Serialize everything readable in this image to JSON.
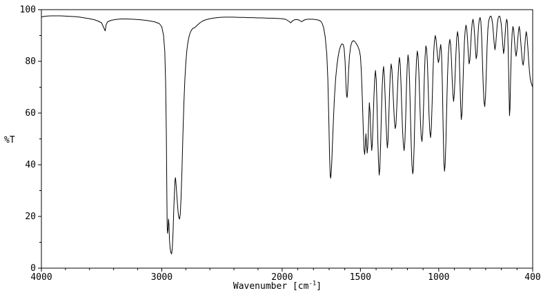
{
  "chart_data": {
    "type": "line",
    "title": "",
    "ylabel": "%T",
    "xlabel_prefix": "Wavenumber [cm",
    "xlabel_sup": "-1",
    "xlabel_suffix": "]",
    "line_color": "#000000",
    "background": "#ffffff",
    "ylim": [
      0,
      100
    ],
    "y_ticks": {
      "major": [
        0,
        20,
        40,
        60,
        80,
        100
      ],
      "minor": [
        10,
        30,
        50,
        70,
        90
      ]
    },
    "x_axis": {
      "max": 4000,
      "break_at": 2000,
      "min": 400,
      "reversed": true
    },
    "x_ticks": {
      "labeled": [
        4000,
        3000,
        2000,
        1500,
        1000,
        400
      ],
      "minor_left": [
        3800,
        3600,
        3400,
        3200,
        2800,
        2600,
        2400,
        2200
      ],
      "minor_right": [
        1900,
        1800,
        1700,
        1600,
        1400,
        1300,
        1200,
        1100,
        900,
        800,
        700,
        600,
        500
      ]
    },
    "major_absorptions": [
      {
        "wavenumber": 3470,
        "t_min": 91.8
      },
      {
        "wavenumber": 2955,
        "t_min": 13.5
      },
      {
        "wavenumber": 2920,
        "t_min": 5.5
      },
      {
        "wavenumber": 2852,
        "t_min": 19
      },
      {
        "wavenumber": 1945,
        "t_min": 94.9
      },
      {
        "wavenumber": 1875,
        "t_min": 95.3
      },
      {
        "wavenumber": 1690,
        "t_min": 34.8
      },
      {
        "wavenumber": 1585,
        "t_min": 66
      },
      {
        "wavenumber": 1460,
        "t_min": 44
      },
      {
        "wavenumber": 1380,
        "t_min": 36
      },
      {
        "wavenumber": 1166,
        "t_min": 36.5
      },
      {
        "wavenumber": 963,
        "t_min": 37.5
      },
      {
        "wavenumber": 856,
        "t_min": 57.5
      },
      {
        "wavenumber": 706,
        "t_min": 62.5
      },
      {
        "wavenumber": 548,
        "t_min": 59
      },
      {
        "wavenumber": 400,
        "t_min": 70
      }
    ],
    "points": [
      [
        4000,
        97.2
      ],
      [
        3960,
        97.5
      ],
      [
        3920,
        97.6
      ],
      [
        3880,
        97.6
      ],
      [
        3840,
        97.6
      ],
      [
        3800,
        97.5
      ],
      [
        3760,
        97.4
      ],
      [
        3720,
        97.3
      ],
      [
        3680,
        97.1
      ],
      [
        3640,
        96.8
      ],
      [
        3600,
        96.5
      ],
      [
        3560,
        96.1
      ],
      [
        3530,
        95.6
      ],
      [
        3500,
        94.9
      ],
      [
        3480,
        92.8
      ],
      [
        3470,
        91.8
      ],
      [
        3462,
        94.2
      ],
      [
        3450,
        95.3
      ],
      [
        3420,
        95.9
      ],
      [
        3380,
        96.2
      ],
      [
        3340,
        96.4
      ],
      [
        3300,
        96.4
      ],
      [
        3240,
        96.3
      ],
      [
        3180,
        96.1
      ],
      [
        3120,
        95.8
      ],
      [
        3060,
        95.3
      ],
      [
        3020,
        94.6
      ],
      [
        3000,
        93.4
      ],
      [
        2985,
        90
      ],
      [
        2975,
        84
      ],
      [
        2968,
        72
      ],
      [
        2962,
        52
      ],
      [
        2958,
        30
      ],
      [
        2955,
        16
      ],
      [
        2952,
        13.5
      ],
      [
        2948,
        15
      ],
      [
        2944,
        19
      ],
      [
        2940,
        17
      ],
      [
        2936,
        11
      ],
      [
        2930,
        7.5
      ],
      [
        2924,
        6
      ],
      [
        2918,
        5.5
      ],
      [
        2912,
        8
      ],
      [
        2906,
        14
      ],
      [
        2900,
        23
      ],
      [
        2894,
        30
      ],
      [
        2890,
        34
      ],
      [
        2886,
        35
      ],
      [
        2882,
        33
      ],
      [
        2876,
        29
      ],
      [
        2870,
        25
      ],
      [
        2864,
        21.5
      ],
      [
        2858,
        19.5
      ],
      [
        2852,
        19
      ],
      [
        2846,
        21
      ],
      [
        2840,
        27
      ],
      [
        2832,
        38
      ],
      [
        2824,
        52
      ],
      [
        2816,
        64
      ],
      [
        2808,
        73
      ],
      [
        2800,
        79.5
      ],
      [
        2792,
        84
      ],
      [
        2784,
        87
      ],
      [
        2776,
        89
      ],
      [
        2768,
        90.5
      ],
      [
        2760,
        91.5
      ],
      [
        2750,
        92.3
      ],
      [
        2740,
        92.8
      ],
      [
        2728,
        93
      ],
      [
        2716,
        93.5
      ],
      [
        2700,
        94.2
      ],
      [
        2680,
        95
      ],
      [
        2660,
        95.6
      ],
      [
        2640,
        96
      ],
      [
        2600,
        96.5
      ],
      [
        2560,
        96.8
      ],
      [
        2520,
        97
      ],
      [
        2480,
        97.1
      ],
      [
        2440,
        97.1
      ],
      [
        2400,
        97.1
      ],
      [
        2360,
        97
      ],
      [
        2320,
        97
      ],
      [
        2280,
        96.9
      ],
      [
        2240,
        96.9
      ],
      [
        2200,
        96.8
      ],
      [
        2160,
        96.8
      ],
      [
        2120,
        96.7
      ],
      [
        2080,
        96.7
      ],
      [
        2040,
        96.6
      ],
      [
        2000,
        96.5
      ],
      [
        1975,
        96.2
      ],
      [
        1955,
        95.4
      ],
      [
        1945,
        94.9
      ],
      [
        1935,
        95.6
      ],
      [
        1920,
        96.1
      ],
      [
        1905,
        96.2
      ],
      [
        1890,
        95.9
      ],
      [
        1875,
        95.3
      ],
      [
        1865,
        95.8
      ],
      [
        1850,
        96.2
      ],
      [
        1830,
        96.3
      ],
      [
        1810,
        96.3
      ],
      [
        1790,
        96.2
      ],
      [
        1770,
        96
      ],
      [
        1755,
        95.6
      ],
      [
        1745,
        94.8
      ],
      [
        1735,
        93
      ],
      [
        1725,
        89.5
      ],
      [
        1715,
        83
      ],
      [
        1708,
        73
      ],
      [
        1702,
        58
      ],
      [
        1697,
        43
      ],
      [
        1693,
        36
      ],
      [
        1690,
        34.8
      ],
      [
        1687,
        36.5
      ],
      [
        1683,
        41
      ],
      [
        1678,
        49
      ],
      [
        1672,
        58
      ],
      [
        1666,
        66
      ],
      [
        1658,
        73.5
      ],
      [
        1650,
        78.5
      ],
      [
        1642,
        82
      ],
      [
        1634,
        84.5
      ],
      [
        1626,
        86
      ],
      [
        1618,
        86.8
      ],
      [
        1610,
        86.5
      ],
      [
        1604,
        85
      ],
      [
        1598,
        80
      ],
      [
        1593,
        72
      ],
      [
        1589,
        67
      ],
      [
        1585,
        66
      ],
      [
        1581,
        69
      ],
      [
        1576,
        76
      ],
      [
        1570,
        82
      ],
      [
        1562,
        86
      ],
      [
        1554,
        87.5
      ],
      [
        1546,
        88
      ],
      [
        1538,
        87.8
      ],
      [
        1528,
        87
      ],
      [
        1518,
        86
      ],
      [
        1508,
        84.5
      ],
      [
        1500,
        82
      ],
      [
        1494,
        76
      ],
      [
        1488,
        66
      ],
      [
        1482,
        54
      ],
      [
        1477,
        46
      ],
      [
        1473,
        44
      ],
      [
        1469,
        47
      ],
      [
        1465,
        52
      ],
      [
        1461,
        48
      ],
      [
        1457,
        44.5
      ],
      [
        1453,
        47
      ],
      [
        1448,
        56
      ],
      [
        1443,
        64
      ],
      [
        1438,
        60
      ],
      [
        1433,
        51
      ],
      [
        1428,
        45.5
      ],
      [
        1424,
        48
      ],
      [
        1419,
        57
      ],
      [
        1414,
        66
      ],
      [
        1409,
        73
      ],
      [
        1404,
        76.5
      ],
      [
        1399,
        73
      ],
      [
        1394,
        63
      ],
      [
        1389,
        50
      ],
      [
        1384,
        40
      ],
      [
        1380,
        36
      ],
      [
        1376,
        38.5
      ],
      [
        1371,
        48
      ],
      [
        1366,
        60
      ],
      [
        1361,
        70
      ],
      [
        1356,
        76
      ],
      [
        1352,
        78
      ],
      [
        1347,
        74
      ],
      [
        1342,
        66
      ],
      [
        1337,
        57
      ],
      [
        1332,
        50
      ],
      [
        1328,
        46.5
      ],
      [
        1324,
        49
      ],
      [
        1319,
        58
      ],
      [
        1314,
        68
      ],
      [
        1309,
        75.5
      ],
      [
        1304,
        79
      ],
      [
        1299,
        77
      ],
      [
        1294,
        71
      ],
      [
        1288,
        63
      ],
      [
        1283,
        57
      ],
      [
        1278,
        54
      ],
      [
        1273,
        55.5
      ],
      [
        1268,
        62
      ],
      [
        1262,
        71
      ],
      [
        1256,
        78.5
      ],
      [
        1251,
        81.5
      ],
      [
        1246,
        79
      ],
      [
        1241,
        71.5
      ],
      [
        1236,
        62
      ],
      [
        1231,
        53.5
      ],
      [
        1226,
        48
      ],
      [
        1221,
        45.5
      ],
      [
        1216,
        49
      ],
      [
        1211,
        58
      ],
      [
        1206,
        70
      ],
      [
        1201,
        78.5
      ],
      [
        1196,
        82.5
      ],
      [
        1191,
        80
      ],
      [
        1186,
        72
      ],
      [
        1181,
        60
      ],
      [
        1176,
        48.5
      ],
      [
        1171,
        40
      ],
      [
        1166,
        36.5
      ],
      [
        1162,
        38
      ],
      [
        1157,
        47
      ],
      [
        1152,
        60
      ],
      [
        1147,
        72.5
      ],
      [
        1142,
        80.5
      ],
      [
        1137,
        84
      ],
      [
        1132,
        82
      ],
      [
        1127,
        76
      ],
      [
        1122,
        66.5
      ],
      [
        1117,
        57
      ],
      [
        1112,
        51
      ],
      [
        1107,
        49
      ],
      [
        1102,
        52.5
      ],
      [
        1097,
        62
      ],
      [
        1092,
        73.5
      ],
      [
        1087,
        82
      ],
      [
        1082,
        86
      ],
      [
        1077,
        84.5
      ],
      [
        1072,
        79
      ],
      [
        1067,
        69.5
      ],
      [
        1062,
        59.5
      ],
      [
        1057,
        53
      ],
      [
        1052,
        50.5
      ],
      [
        1047,
        54.5
      ],
      [
        1042,
        64
      ],
      [
        1037,
        75
      ],
      [
        1032,
        83.5
      ],
      [
        1027,
        88
      ],
      [
        1022,
        90
      ],
      [
        1017,
        88.5
      ],
      [
        1012,
        85
      ],
      [
        1007,
        81.5
      ],
      [
        1002,
        79.5
      ],
      [
        997,
        81
      ],
      [
        992,
        84.5
      ],
      [
        987,
        86.5
      ],
      [
        982,
        83
      ],
      [
        977,
        72
      ],
      [
        972,
        55
      ],
      [
        967,
        41
      ],
      [
        963,
        37.5
      ],
      [
        959,
        40
      ],
      [
        954,
        49
      ],
      [
        949,
        62
      ],
      [
        944,
        74
      ],
      [
        939,
        82
      ],
      [
        934,
        86.5
      ],
      [
        929,
        88.5
      ],
      [
        924,
        86.5
      ],
      [
        919,
        81
      ],
      [
        914,
        73
      ],
      [
        909,
        67
      ],
      [
        905,
        64.5
      ],
      [
        900,
        67.5
      ],
      [
        895,
        75
      ],
      [
        890,
        83
      ],
      [
        885,
        89
      ],
      [
        880,
        91.5
      ],
      [
        875,
        89.5
      ],
      [
        870,
        83.5
      ],
      [
        865,
        73.5
      ],
      [
        860,
        63
      ],
      [
        856,
        57.5
      ],
      [
        851,
        60
      ],
      [
        846,
        69.5
      ],
      [
        841,
        79.5
      ],
      [
        836,
        87.5
      ],
      [
        831,
        92
      ],
      [
        826,
        94
      ],
      [
        821,
        92.5
      ],
      [
        816,
        88.5
      ],
      [
        811,
        83
      ],
      [
        806,
        79
      ],
      [
        801,
        80.5
      ],
      [
        796,
        86
      ],
      [
        791,
        91.5
      ],
      [
        786,
        95
      ],
      [
        781,
        96.3
      ],
      [
        776,
        94.5
      ],
      [
        771,
        90.5
      ],
      [
        766,
        85
      ],
      [
        761,
        81
      ],
      [
        756,
        82.5
      ],
      [
        751,
        88
      ],
      [
        746,
        93.5
      ],
      [
        741,
        96
      ],
      [
        736,
        97
      ],
      [
        731,
        95.5
      ],
      [
        726,
        90
      ],
      [
        721,
        80.5
      ],
      [
        716,
        71
      ],
      [
        711,
        64.5
      ],
      [
        706,
        62.5
      ],
      [
        701,
        66.5
      ],
      [
        696,
        76
      ],
      [
        691,
        86
      ],
      [
        686,
        92.5
      ],
      [
        681,
        95.5
      ],
      [
        676,
        96.8
      ],
      [
        671,
        97.4
      ],
      [
        666,
        97.5
      ],
      [
        661,
        96.5
      ],
      [
        656,
        94.5
      ],
      [
        651,
        91
      ],
      [
        646,
        87
      ],
      [
        641,
        84.5
      ],
      [
        636,
        86.5
      ],
      [
        631,
        90.5
      ],
      [
        626,
        94.5
      ],
      [
        621,
        96.5
      ],
      [
        616,
        97.4
      ],
      [
        611,
        97.5
      ],
      [
        606,
        96.5
      ],
      [
        601,
        94.5
      ],
      [
        596,
        91
      ],
      [
        591,
        86.5
      ],
      [
        586,
        83
      ],
      [
        581,
        85
      ],
      [
        576,
        90.5
      ],
      [
        571,
        94.5
      ],
      [
        566,
        96.3
      ],
      [
        561,
        95
      ],
      [
        556,
        84
      ],
      [
        551,
        68
      ],
      [
        548,
        59
      ],
      [
        545,
        61.5
      ],
      [
        541,
        73
      ],
      [
        536,
        84.5
      ],
      [
        531,
        91
      ],
      [
        526,
        93.5
      ],
      [
        521,
        92
      ],
      [
        516,
        88
      ],
      [
        511,
        84
      ],
      [
        506,
        82
      ],
      [
        501,
        84
      ],
      [
        496,
        88
      ],
      [
        491,
        91.5
      ],
      [
        486,
        93.5
      ],
      [
        481,
        91.5
      ],
      [
        476,
        87.5
      ],
      [
        471,
        83.5
      ],
      [
        466,
        80
      ],
      [
        461,
        78.5
      ],
      [
        456,
        80.5
      ],
      [
        451,
        85
      ],
      [
        446,
        89.5
      ],
      [
        441,
        91.5
      ],
      [
        436,
        89.5
      ],
      [
        431,
        85.5
      ],
      [
        426,
        80.5
      ],
      [
        421,
        76.5
      ],
      [
        416,
        73.5
      ],
      [
        411,
        72
      ],
      [
        406,
        71
      ],
      [
        400,
        70
      ]
    ]
  }
}
